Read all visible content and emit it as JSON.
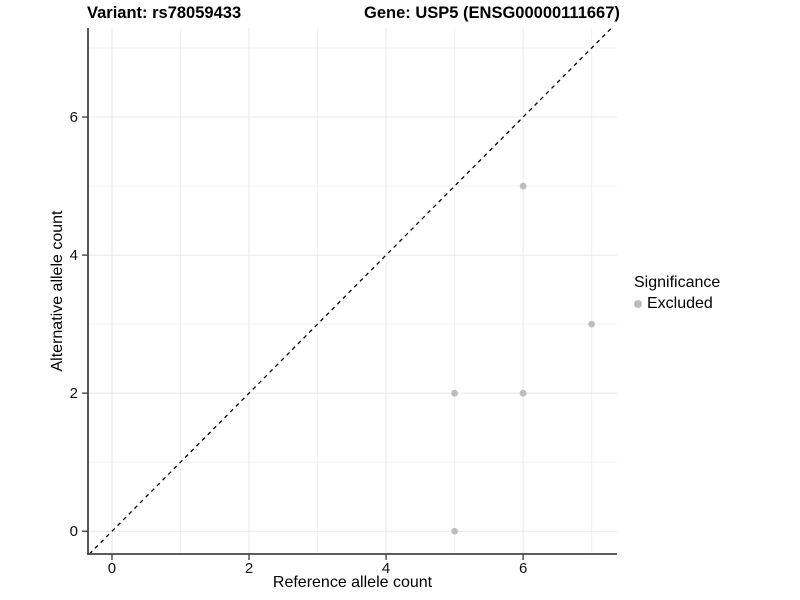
{
  "chart_data": {
    "type": "scatter",
    "title_left": "Variant: rs78059433",
    "title_right": "Gene: USP5 (ENSG00000111667)",
    "xlabel": "Reference allele count",
    "ylabel": "Alternative allele count",
    "xlim": [
      -0.35,
      7.37
    ],
    "ylim": [
      -0.33,
      7.29
    ],
    "xticks": [
      0,
      2,
      4,
      6
    ],
    "yticks": [
      0,
      2,
      4,
      6
    ],
    "minor_xticks": [
      1,
      3,
      5,
      7
    ],
    "minor_yticks": [
      1,
      3,
      5,
      7
    ],
    "grid": true,
    "identity_line": {
      "style": "dashed",
      "color": "#000000",
      "slope": 1,
      "intercept": 0
    },
    "series": [
      {
        "name": "Excluded",
        "color": "#bdbdbd",
        "points": [
          [
            5,
            0
          ],
          [
            5,
            2
          ],
          [
            6,
            2
          ],
          [
            7,
            3
          ],
          [
            6,
            5
          ]
        ]
      }
    ],
    "legend": {
      "title": "Significance",
      "position": "right",
      "items": [
        {
          "label": "Excluded",
          "color": "#bdbdbd"
        }
      ]
    },
    "colors": {
      "major_grid": "#e8e8e8",
      "minor_grid": "#f2f2f2",
      "axis_line": "#464646",
      "tick_label": "#111111"
    }
  }
}
